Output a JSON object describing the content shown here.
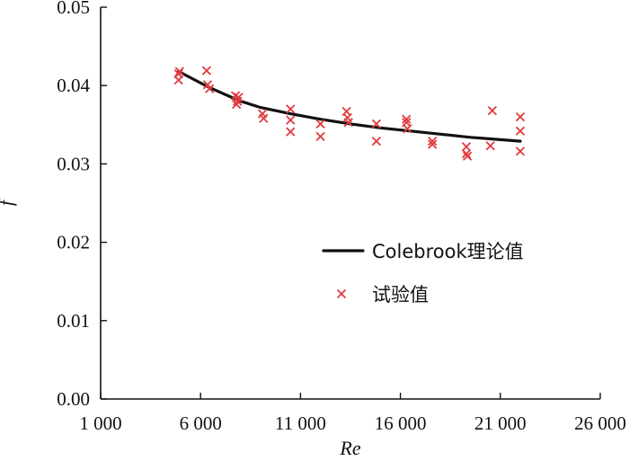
{
  "chart_data": {
    "type": "scatter",
    "xlabel": "Re",
    "ylabel": "f",
    "xlim": [
      1000,
      26000
    ],
    "ylim": [
      0,
      0.05
    ],
    "xticks": [
      1000,
      6000,
      11000,
      16000,
      21000,
      26000
    ],
    "xtick_labels": [
      "1 000",
      "6 000",
      "11 000",
      "16 000",
      "21 000",
      "26 000"
    ],
    "yticks": [
      0,
      0.01,
      0.02,
      0.03,
      0.04,
      0.05
    ],
    "ytick_labels": [
      "0.00",
      "0.01",
      "0.02",
      "0.03",
      "0.04",
      "0.05"
    ],
    "grid": false,
    "legend_position": "center-right",
    "series": [
      {
        "name": "Colebrook理论值",
        "kind": "line",
        "color": "#111111",
        "x": [
          4900,
          6400,
          7900,
          9000,
          10500,
          12000,
          13500,
          15000,
          16500,
          18000,
          19500,
          21000,
          22000
        ],
        "y": [
          0.0418,
          0.0398,
          0.0381,
          0.0372,
          0.0364,
          0.0357,
          0.0351,
          0.0346,
          0.0342,
          0.0338,
          0.0334,
          0.0331,
          0.0329
        ]
      },
      {
        "name": "试验值",
        "kind": "scatter",
        "color": "#e03a3e",
        "marker": "x",
        "x": [
          4900,
          4900,
          4950,
          6300,
          6350,
          6450,
          7750,
          7800,
          7900,
          7850,
          9100,
          9150,
          10500,
          10500,
          10500,
          12000,
          12000,
          13300,
          13350,
          13400,
          14800,
          14800,
          16300,
          16300,
          16350,
          17600,
          17600,
          19300,
          19300,
          19350,
          20500,
          20600,
          22000,
          22000,
          22000
        ],
        "y": [
          0.0415,
          0.0407,
          0.0418,
          0.0419,
          0.0401,
          0.0396,
          0.0387,
          0.0376,
          0.0385,
          0.038,
          0.0364,
          0.0358,
          0.037,
          0.0356,
          0.0341,
          0.0351,
          0.0335,
          0.0367,
          0.0359,
          0.0353,
          0.0351,
          0.0329,
          0.0357,
          0.0353,
          0.0345,
          0.0329,
          0.0325,
          0.0322,
          0.0313,
          0.031,
          0.0323,
          0.0368,
          0.036,
          0.0342,
          0.0316
        ]
      }
    ]
  }
}
